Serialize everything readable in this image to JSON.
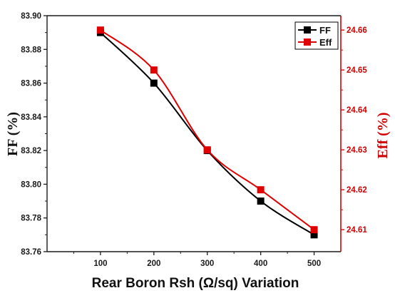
{
  "chart_data": {
    "type": "line",
    "title": "",
    "xlabel": "Rear Boron Rsh (Ω/sq) Variation",
    "ylabel_left": "FF (%)",
    "ylabel_right": "Eff (%)",
    "x": [
      100,
      200,
      300,
      400,
      500
    ],
    "x_ticks": [
      "100",
      "200",
      "300",
      "400",
      "500"
    ],
    "xlim": [
      0,
      550
    ],
    "ylim_left": [
      83.76,
      83.9
    ],
    "ylim_right": [
      24.6045,
      24.6636
    ],
    "y_ticks_left": [
      "83.76",
      "83.78",
      "83.80",
      "83.82",
      "83.84",
      "83.86",
      "83.88",
      "83.90"
    ],
    "y_ticks_right": [
      "24.61",
      "24.62",
      "24.63",
      "24.64",
      "24.65",
      "24.66"
    ],
    "grid": false,
    "legend_position": "top-right",
    "series": [
      {
        "name": "FF",
        "axis": "left",
        "color": "#000000",
        "values": [
          83.89,
          83.86,
          83.82,
          83.79,
          83.77
        ]
      },
      {
        "name": "Eff",
        "axis": "right",
        "color": "#e00000",
        "values": [
          24.66,
          24.65,
          24.63,
          24.62,
          24.61
        ]
      }
    ]
  },
  "colors": {
    "left_axis": "#1a1a1a",
    "right_axis": "#d00000"
  }
}
